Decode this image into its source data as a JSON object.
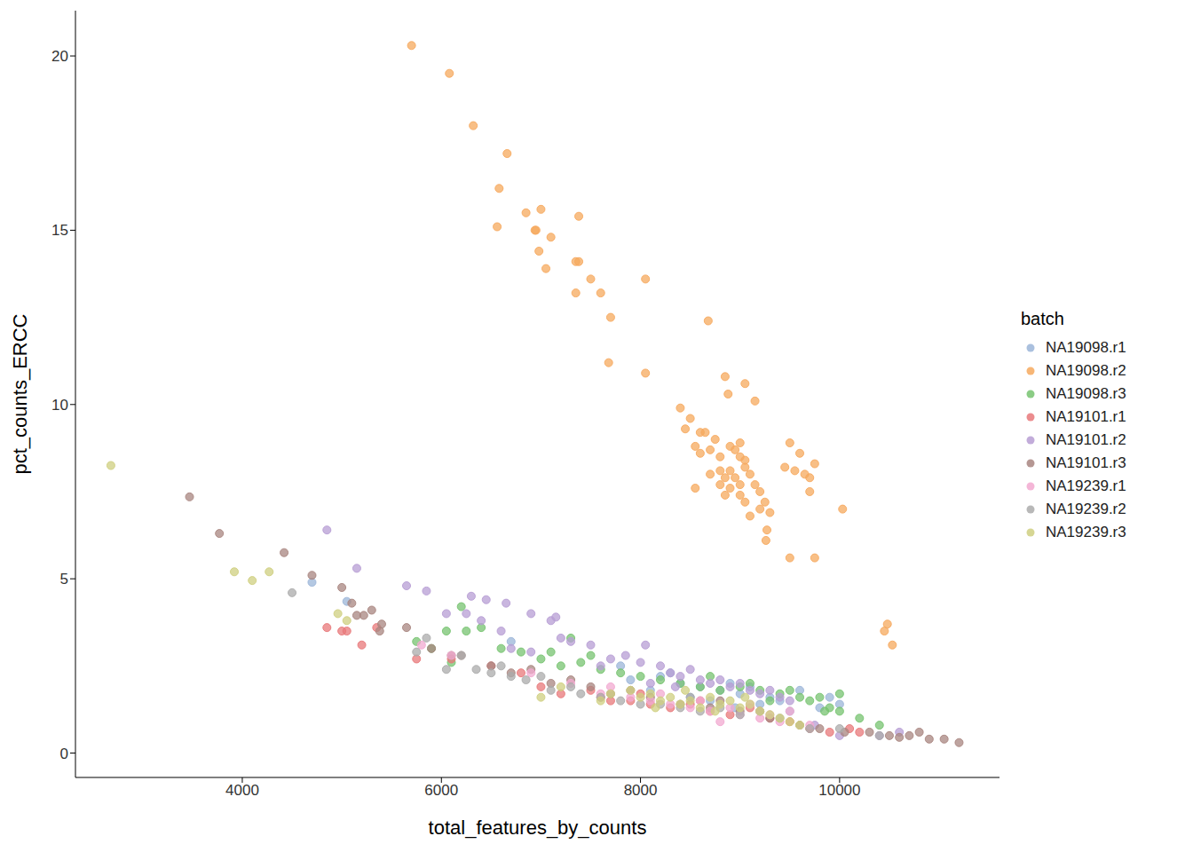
{
  "chart_data": {
    "type": "scatter",
    "x_label": "total_features_by_counts",
    "y_label": "pct_counts_ERCC",
    "legend_title": "batch",
    "legend": "right",
    "grid": false,
    "xlim": [
      2324,
      11606
    ],
    "xticks": [
      4000,
      6000,
      8000,
      10000
    ],
    "ylim": [
      -0.7,
      21.3
    ],
    "yticks": [
      0,
      5,
      10,
      15,
      20
    ],
    "series": [
      {
        "name": "NA19098.r1",
        "color": "#9bb5d8",
        "x": [
          4700,
          5050,
          6700,
          7800,
          8200,
          8400,
          8600,
          8800,
          8900,
          9000,
          9100,
          9300,
          9400,
          9600,
          9800,
          9900,
          10000,
          8500,
          8700,
          9200,
          7900,
          8100,
          9500,
          8300,
          8950
        ],
        "values": [
          4.9,
          4.35,
          3.2,
          2.5,
          2.2,
          2.0,
          1.9,
          1.8,
          2.0,
          1.7,
          1.9,
          1.6,
          1.5,
          1.8,
          1.3,
          1.6,
          1.4,
          1.6,
          1.5,
          1.4,
          2.1,
          1.8,
          1.2,
          2.3,
          1.3
        ]
      },
      {
        "name": "NA19098.r2",
        "color": "#f6a95e",
        "x": [
          5700,
          6080,
          6320,
          6660,
          6580,
          6560,
          6850,
          6950,
          6940,
          7000,
          6980,
          7100,
          7050,
          7350,
          7380,
          7380,
          7500,
          7350,
          7600,
          7700,
          7680,
          8050,
          8050,
          8680,
          8850,
          9050,
          8880,
          9150,
          8400,
          8500,
          8450,
          8600,
          8650,
          8750,
          8550,
          8700,
          8800,
          8900,
          8950,
          9000,
          9050,
          9050,
          8800,
          8900,
          8850,
          8950,
          9100,
          8800,
          8900,
          9000,
          8850,
          9000,
          9150,
          9200,
          9050,
          9250,
          9300,
          9100,
          9200,
          9270,
          9260,
          8550,
          9500,
          9600,
          9650,
          9700,
          9750,
          9700,
          9550,
          9450,
          9500,
          9750,
          10030,
          10450,
          10480,
          10530,
          8700,
          9000,
          8600
        ],
        "values": [
          20.3,
          19.5,
          18.0,
          17.2,
          16.2,
          15.1,
          15.5,
          15.0,
          15.0,
          15.6,
          14.4,
          14.8,
          13.9,
          14.1,
          14.1,
          15.4,
          13.6,
          13.2,
          13.2,
          12.5,
          11.2,
          13.6,
          10.9,
          12.4,
          10.8,
          10.6,
          10.3,
          10.1,
          9.9,
          9.6,
          9.3,
          9.2,
          9.2,
          9.0,
          8.8,
          8.7,
          8.5,
          8.8,
          8.7,
          8.5,
          8.4,
          8.2,
          8.1,
          8.1,
          7.9,
          7.9,
          8.0,
          7.7,
          7.6,
          7.7,
          7.4,
          7.4,
          7.7,
          7.5,
          7.2,
          7.2,
          6.9,
          6.8,
          7.0,
          6.4,
          6.1,
          7.6,
          8.9,
          8.6,
          8.0,
          7.9,
          8.3,
          7.5,
          8.1,
          8.2,
          5.6,
          5.6,
          7.0,
          3.5,
          3.7,
          3.1,
          8.0,
          8.9,
          8.6
        ]
      },
      {
        "name": "NA19098.r3",
        "color": "#77c370",
        "x": [
          5750,
          5900,
          6050,
          6200,
          6250,
          6400,
          6600,
          6800,
          7000,
          7100,
          7200,
          7300,
          7400,
          7600,
          7800,
          8000,
          8200,
          8400,
          8600,
          8800,
          9000,
          9200,
          9400,
          9500,
          9600,
          9700,
          9800,
          9900,
          10000,
          10000,
          10200,
          10400,
          9300,
          8700,
          7500,
          9100,
          9850,
          6100
        ],
        "values": [
          3.2,
          3.0,
          3.5,
          4.2,
          3.5,
          3.6,
          3.0,
          2.9,
          2.7,
          2.9,
          2.5,
          3.3,
          2.6,
          2.4,
          2.3,
          2.2,
          2.1,
          2.0,
          1.9,
          1.8,
          1.9,
          1.8,
          1.7,
          1.8,
          1.6,
          1.5,
          1.6,
          1.3,
          1.7,
          1.2,
          1.0,
          0.8,
          1.5,
          2.2,
          2.8,
          2.0,
          1.2,
          2.6
        ]
      },
      {
        "name": "NA19101.r1",
        "color": "#e8787a",
        "x": [
          4850,
          5000,
          5050,
          5200,
          5350,
          5750,
          6100,
          6500,
          6800,
          7000,
          7200,
          7500,
          7700,
          7900,
          8100,
          8300,
          8500,
          8700,
          8900,
          9100,
          9300,
          9500,
          9700,
          9900,
          10100,
          8000,
          8600,
          9200,
          7600,
          10200
        ],
        "values": [
          3.6,
          3.5,
          3.5,
          3.1,
          3.6,
          2.7,
          2.7,
          2.5,
          2.3,
          1.9,
          1.7,
          1.8,
          1.5,
          1.5,
          1.4,
          1.3,
          1.4,
          1.2,
          1.1,
          1.3,
          1.0,
          0.9,
          0.7,
          0.6,
          0.7,
          1.7,
          1.5,
          1.2,
          1.6,
          0.6
        ]
      },
      {
        "name": "NA19101.r2",
        "color": "#b79dd4",
        "x": [
          4850,
          5150,
          5650,
          5850,
          6050,
          6300,
          6450,
          6650,
          6400,
          6250,
          6600,
          6900,
          7100,
          7150,
          7300,
          7500,
          7700,
          7850,
          8050,
          8000,
          8200,
          8300,
          8400,
          8600,
          8700,
          8800,
          8900,
          9000,
          9100,
          9200,
          9300,
          9400,
          8500,
          7200,
          6900,
          6700,
          9500,
          8100,
          8350,
          7600,
          9750,
          10000,
          10400,
          10600
        ],
        "values": [
          6.4,
          5.3,
          4.8,
          4.65,
          4.0,
          4.5,
          4.4,
          4.3,
          3.8,
          4.0,
          3.5,
          4.0,
          3.8,
          3.9,
          3.2,
          3.1,
          2.7,
          2.8,
          3.1,
          2.6,
          2.5,
          2.3,
          2.2,
          2.1,
          2.0,
          2.1,
          1.9,
          2.0,
          1.8,
          1.7,
          1.8,
          1.6,
          2.4,
          3.3,
          2.9,
          3.0,
          1.5,
          2.0,
          1.9,
          2.5,
          0.8,
          0.5,
          0.5,
          0.6
        ]
      },
      {
        "name": "NA19101.r3",
        "color": "#a88580",
        "x": [
          3470,
          3770,
          4420,
          4700,
          5000,
          5100,
          5150,
          5220,
          5300,
          5400,
          5380,
          5650,
          5900,
          6100,
          6200,
          6500,
          6700,
          6900,
          7100,
          7300,
          7500,
          7700,
          7900,
          8100,
          8400,
          8700,
          9000,
          9300,
          9600,
          9800,
          10050,
          10300,
          10500,
          10700,
          10800,
          10900,
          11050,
          11200,
          10600,
          8800
        ],
        "values": [
          7.35,
          6.3,
          5.75,
          5.1,
          4.75,
          4.3,
          3.95,
          3.95,
          4.1,
          3.7,
          3.5,
          3.6,
          3.0,
          2.8,
          2.8,
          2.5,
          2.3,
          2.4,
          2.0,
          2.1,
          1.9,
          1.7,
          1.8,
          1.6,
          1.4,
          1.3,
          1.2,
          1.0,
          0.8,
          0.7,
          0.6,
          0.6,
          0.5,
          0.5,
          0.6,
          0.4,
          0.4,
          0.3,
          0.45,
          1.5
        ]
      },
      {
        "name": "NA19239.r1",
        "color": "#f2a9d0",
        "x": [
          5800,
          6100,
          6900,
          7300,
          7600,
          7900,
          8100,
          8300,
          8500,
          8700,
          8800,
          8900,
          9000,
          9200,
          9400,
          9500,
          9700,
          8600,
          8200,
          9100,
          7700,
          9300
        ],
        "values": [
          3.1,
          2.8,
          2.3,
          2.0,
          1.7,
          1.6,
          1.5,
          1.4,
          1.3,
          1.2,
          0.9,
          1.3,
          1.1,
          1.0,
          0.9,
          1.2,
          0.8,
          1.5,
          1.7,
          1.4,
          1.9,
          1.1
        ]
      },
      {
        "name": "NA19239.r2",
        "color": "#ababab",
        "x": [
          4500,
          5750,
          5850,
          6050,
          6200,
          6350,
          6600,
          6700,
          6850,
          7000,
          7100,
          7400,
          7600,
          7800,
          8000,
          8200,
          8400,
          8600,
          8800,
          9000,
          9200,
          9400,
          9700,
          10000,
          10400,
          8500,
          7300,
          6500
        ],
        "values": [
          4.6,
          2.9,
          3.3,
          2.4,
          2.8,
          2.4,
          2.5,
          2.2,
          2.1,
          2.2,
          1.8,
          1.7,
          1.6,
          1.5,
          1.4,
          1.4,
          1.3,
          1.2,
          1.3,
          1.1,
          1.2,
          1.0,
          0.7,
          0.7,
          0.5,
          1.6,
          1.9,
          2.3
        ]
      },
      {
        "name": "NA19239.r3",
        "color": "#cfcf80",
        "x": [
          2680,
          3920,
          4100,
          4270,
          4960,
          5050,
          7000,
          7200,
          7900,
          8000,
          8100,
          8200,
          8300,
          8400,
          8500,
          8600,
          8700,
          8800,
          8900,
          9000,
          9100,
          9200,
          9300,
          9400,
          9500,
          7700,
          8150,
          8450,
          8750,
          9050,
          9600,
          7600
        ],
        "values": [
          8.25,
          5.2,
          4.95,
          5.2,
          4.0,
          3.8,
          1.6,
          1.9,
          1.8,
          1.6,
          1.7,
          1.5,
          1.6,
          1.4,
          1.5,
          1.3,
          1.6,
          1.4,
          1.5,
          1.3,
          1.4,
          1.2,
          1.1,
          1.0,
          0.9,
          1.7,
          1.3,
          1.8,
          1.2,
          1.6,
          0.8,
          1.5
        ]
      }
    ]
  }
}
